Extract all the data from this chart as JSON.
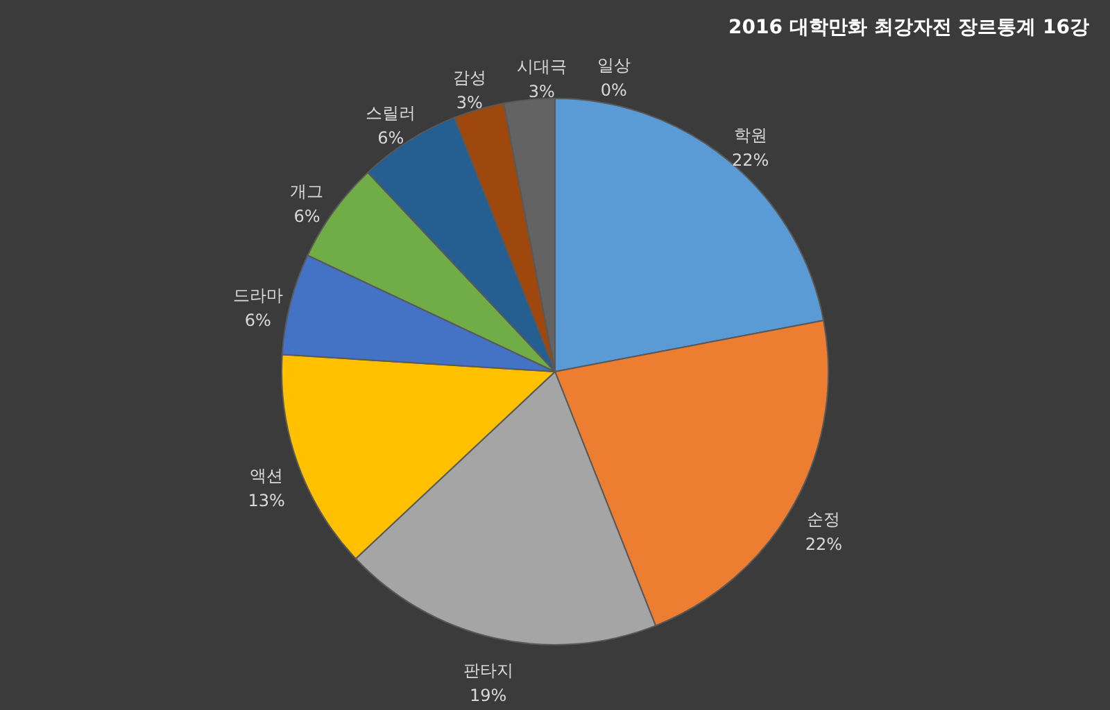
{
  "chart_data": {
    "type": "pie",
    "title": "2016 대학만화 최강자전 장르통계 16강",
    "categories": [
      "학원",
      "순정",
      "판타지",
      "액션",
      "드라마",
      "개그",
      "스릴러",
      "감성",
      "시대극",
      "일상"
    ],
    "values": [
      22,
      22,
      19,
      13,
      6,
      6,
      6,
      3,
      3,
      0
    ],
    "value_labels": [
      "22%",
      "22%",
      "19%",
      "13%",
      "6%",
      "6%",
      "6%",
      "3%",
      "3%",
      "0%"
    ],
    "colors": [
      "#5b9bd5",
      "#ed7d31",
      "#a5a5a5",
      "#ffc000",
      "#4472c4",
      "#70ad47",
      "#255e91",
      "#9e480e",
      "#636363",
      "#997300"
    ]
  }
}
